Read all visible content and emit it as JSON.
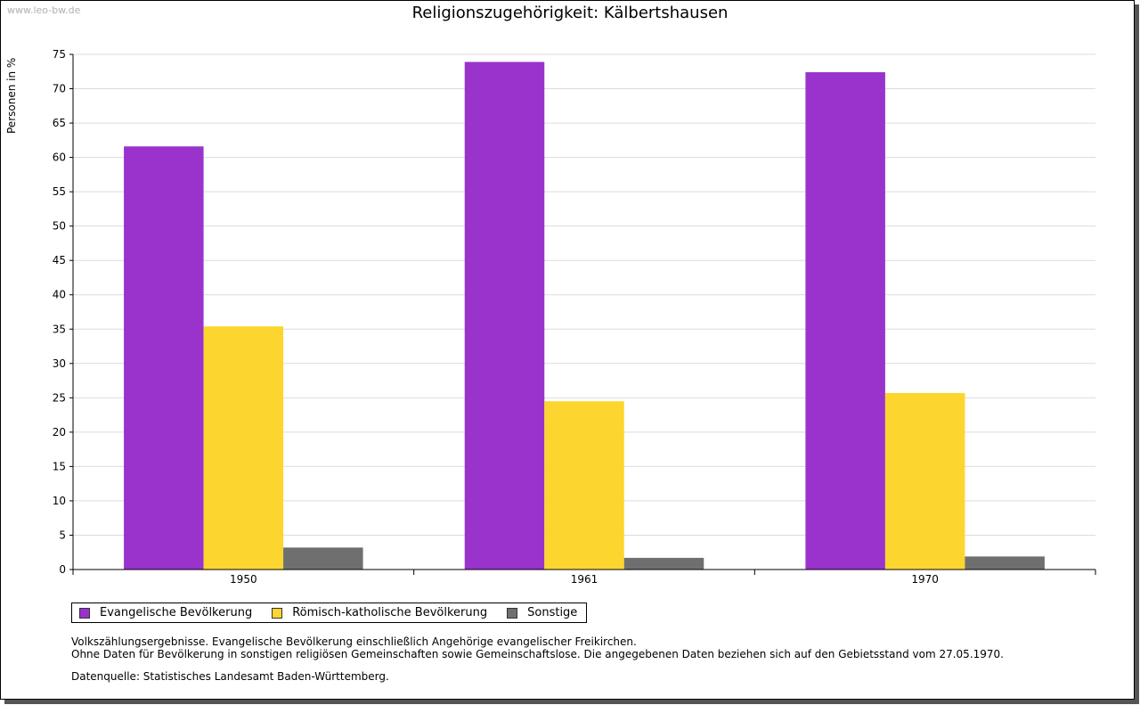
{
  "watermark": "www.leo-bw.de",
  "notes": {
    "line1": "Volkszählungsergebnisse. Evangelische Bevölkerung einschließlich Angehörige evangelischer Freikirchen.",
    "line2": "Ohne Daten für Bevölkerung in sonstigen religiösen Gemeinschaften sowie Gemeinschaftslose. Die angegebenen Daten beziehen sich auf den Gebietsstand vom 27.05.1970.",
    "source": "Datenquelle: Statistisches Landesamt Baden-Württemberg."
  },
  "chart_data": {
    "type": "bar",
    "title": "Religionszugehörigkeit: Kälbertshausen",
    "ylabel": "Personen in %",
    "xlabel": "",
    "categories": [
      "1950",
      "1961",
      "1970"
    ],
    "series": [
      {
        "name": "Evangelische Bevölkerung",
        "color": "#9933cc",
        "values": [
          61.6,
          73.9,
          72.4
        ]
      },
      {
        "name": "Römisch-katholische Bevölkerung",
        "color": "#fcd62e",
        "values": [
          35.4,
          24.5,
          25.7
        ]
      },
      {
        "name": "Sonstige",
        "color": "#6f6f6f",
        "values": [
          3.2,
          1.7,
          1.9
        ]
      }
    ],
    "ylim": [
      0,
      75
    ],
    "yticks": [
      0,
      5,
      10,
      15,
      20,
      25,
      30,
      35,
      40,
      45,
      50,
      55,
      60,
      65,
      70,
      75
    ],
    "grid": true,
    "legend": "bottom-left"
  }
}
